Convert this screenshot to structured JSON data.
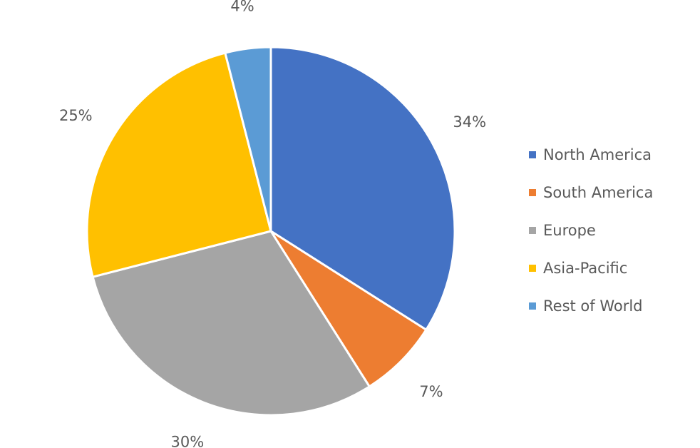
{
  "chart_data": {
    "type": "pie",
    "categories": [
      "North America",
      "South America",
      "Europe",
      "Asia-Pacific",
      "Rest of World"
    ],
    "values": [
      34,
      7,
      30,
      25,
      4
    ],
    "data_labels": [
      "34%",
      "7%",
      "30%",
      "25%",
      "4%"
    ],
    "colors": [
      "#4472C4",
      "#ED7D31",
      "#A5A5A5",
      "#FFC000",
      "#5B9BD5"
    ],
    "start_angle_deg": 0,
    "direction": "clockwise",
    "legend": {
      "position": "right",
      "entries": [
        "North America",
        "South America",
        "Europe",
        "Asia-Pacific",
        "Rest of World"
      ]
    }
  }
}
